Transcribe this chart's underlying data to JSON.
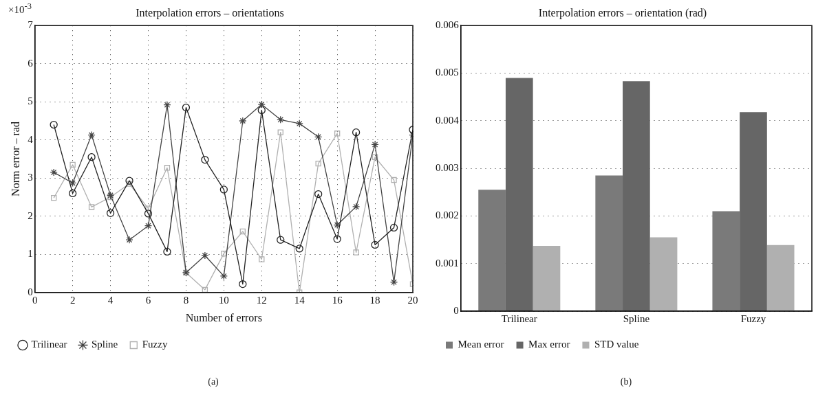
{
  "chart_data": [
    {
      "type": "line",
      "title": "Interpolation errors – orientations",
      "xlabel": "Number of errors",
      "ylabel": "Norm error – rad",
      "annotations": [
        "×10$^{-3}$",
        "(a)"
      ],
      "x": [
        1,
        2,
        3,
        4,
        5,
        6,
        7,
        8,
        9,
        10,
        11,
        12,
        13,
        14,
        15,
        16,
        17,
        18,
        19,
        20
      ],
      "series": [
        {
          "name": "Trilinear",
          "color": "#222222",
          "marker": "circle",
          "values": [
            4.4,
            2.6,
            3.55,
            2.08,
            2.93,
            2.07,
            1.07,
            4.85,
            3.48,
            2.7,
            0.22,
            4.78,
            1.38,
            1.15,
            2.58,
            1.4,
            4.2,
            1.25,
            1.7,
            4.27
          ]
        },
        {
          "name": "Spline",
          "color": "#444444",
          "marker": "cross",
          "values": [
            3.15,
            2.87,
            4.13,
            2.55,
            1.38,
            1.75,
            4.92,
            0.52,
            0.97,
            0.43,
            4.5,
            4.93,
            4.53,
            4.43,
            4.08,
            1.77,
            2.25,
            3.88,
            0.27,
            4.13
          ]
        },
        {
          "name": "Fuzzy",
          "color": "#b0b0b0",
          "marker": "square",
          "values": [
            2.48,
            3.35,
            2.24,
            2.5,
            2.85,
            2.2,
            3.27,
            0.52,
            0.07,
            1.02,
            1.6,
            0.87,
            4.2,
            0.0,
            3.38,
            4.17,
            1.05,
            3.55,
            2.95,
            0.22
          ]
        }
      ],
      "xlim": [
        0,
        20
      ],
      "xticks": [
        0,
        2,
        4,
        6,
        8,
        10,
        12,
        14,
        16,
        18,
        20
      ],
      "ylim": [
        0,
        7
      ],
      "yticks": [
        0,
        1,
        2,
        3,
        4,
        5,
        6,
        7
      ],
      "grid": true,
      "legend": "bottom",
      "line_style": "solid"
    },
    {
      "type": "bar",
      "title": "Interpolation errors – orientation (rad)",
      "annotations": [
        "(b)"
      ],
      "categories": [
        "Trilinear",
        "Spline",
        "Fuzzy"
      ],
      "series": [
        {
          "name": "Mean error",
          "color": "#7a7a7a",
          "values": [
            0.00255,
            0.00285,
            0.0021
          ]
        },
        {
          "name": "Max error",
          "color": "#666666",
          "values": [
            0.0049,
            0.00483,
            0.00418
          ]
        },
        {
          "name": "STD value",
          "color": "#b0b0b0",
          "values": [
            0.00137,
            0.00155,
            0.00139
          ]
        }
      ],
      "ylim": [
        0,
        0.006
      ],
      "yticks": [
        0,
        0.001,
        0.002,
        0.003,
        0.004,
        0.005,
        0.006
      ],
      "grid": "y",
      "legend": "bottom"
    }
  ]
}
